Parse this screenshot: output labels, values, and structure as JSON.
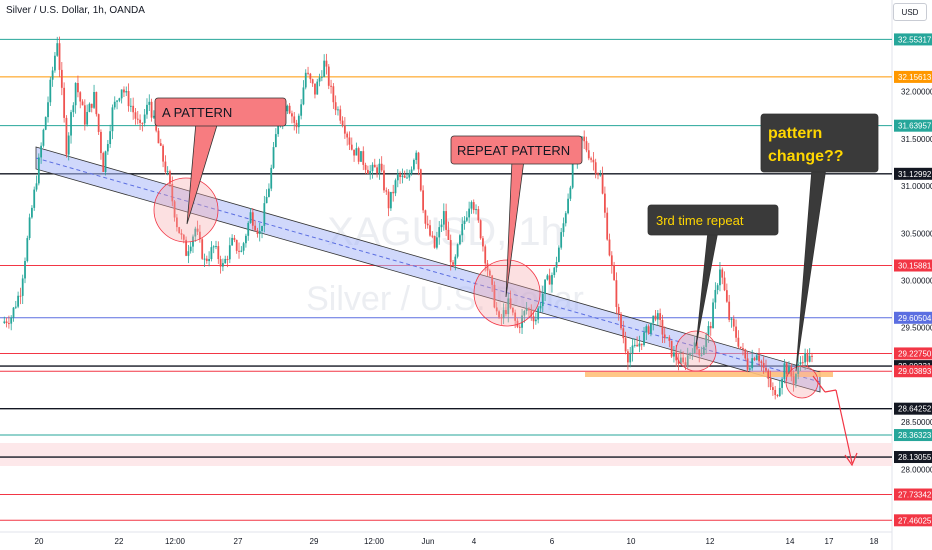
{
  "header": {
    "title": "Silver / U.S. Dollar, 1h, OANDA",
    "currency": "USD"
  },
  "watermark": {
    "symbol": "XAGUSD, 1h",
    "name": "Silver / U.S. Dollar"
  },
  "colors": {
    "up": "#26a69a",
    "down": "#ef5350",
    "teal_line": "#26a69a",
    "orange_line": "#ff9800",
    "red_line": "#f23645",
    "blue_line": "#5b6ee1",
    "channel_fill": "#a9b8f7",
    "annotation_red": "#f77c80",
    "annotation_dark": "#3a3a3a",
    "annotation_yellow_text": "#ffd600"
  },
  "annotations": {
    "a_pattern": "A PATTERN",
    "repeat_pattern": "REPEAT PATTERN",
    "third_repeat": "3rd time repeat",
    "pattern_change_1": "pattern",
    "pattern_change_2": "change??"
  },
  "chart_data": {
    "type": "candlestick",
    "symbol": "XAGUSD",
    "timeframe": "1h",
    "y_axis_ticks": [
      "32.00000",
      "31.50000",
      "31.00000",
      "30.50000",
      "30.00000",
      "29.50000",
      "28.50000",
      "28.00000"
    ],
    "x_axis_ticks": [
      "20",
      "22",
      "12:00",
      "27",
      "29",
      "12:00",
      "Jun",
      "4",
      "6",
      "10",
      "12",
      "14",
      "17",
      "18"
    ],
    "ylim": [
      27.4,
      32.6
    ],
    "horizontal_levels": [
      {
        "value": 32.55317,
        "label": "32.55317",
        "color": "teal"
      },
      {
        "value": 32.15613,
        "label": "32.15613",
        "color": "orange"
      },
      {
        "value": 31.63957,
        "label": "31.63957",
        "color": "teal"
      },
      {
        "value": 31.12992,
        "label": "31.12992",
        "color": "black"
      },
      {
        "value": 30.15881,
        "label": "30.15881",
        "color": "red"
      },
      {
        "value": 29.60504,
        "label": "29.60504",
        "color": "blue"
      },
      {
        "value": 29.2275,
        "label": "29.22750",
        "color": "red"
      },
      {
        "value": 29.09331,
        "label": "29.09331",
        "color": "black"
      },
      {
        "value": 29.03893,
        "label": "29.03893",
        "color": "red"
      },
      {
        "value": 28.64252,
        "label": "28.64252",
        "color": "black"
      },
      {
        "value": 28.36323,
        "label": "28.36323",
        "color": "teal"
      },
      {
        "value": 28.13055,
        "label": "28.13055",
        "color": "black"
      },
      {
        "value": 27.73342,
        "label": "27.73342",
        "color": "red"
      },
      {
        "value": 27.46025,
        "label": "27.46025",
        "color": "red"
      }
    ],
    "channel": {
      "upper_start": [
        0,
        31.32
      ],
      "upper_end": [
        1,
        29.04
      ],
      "lower_start": [
        0,
        31.15
      ],
      "lower_end": [
        1,
        28.85
      ]
    },
    "price_path": [
      29.55,
      29.62,
      29.9,
      30.6,
      31.25,
      31.9,
      32.55,
      31.4,
      32.1,
      31.7,
      31.95,
      31.2,
      31.8,
      32.05,
      31.85,
      31.6,
      31.9,
      31.45,
      31.1,
      30.6,
      30.3,
      30.55,
      30.2,
      30.35,
      30.15,
      30.4,
      30.3,
      30.7,
      30.5,
      31.0,
      31.7,
      31.9,
      31.6,
      32.2,
      32.0,
      32.3,
      31.9,
      31.7,
      31.4,
      31.3,
      31.15,
      31.2,
      30.8,
      31.1,
      31.05,
      31.4,
      30.6,
      30.35,
      30.7,
      30.1,
      30.55,
      30.9,
      30.5,
      30.0,
      29.55,
      29.75,
      29.5,
      29.7,
      29.6,
      29.95,
      30.1,
      30.6,
      31.2,
      31.5,
      31.3,
      31.1,
      30.3,
      29.6,
      29.2,
      29.3,
      29.45,
      29.65,
      29.4,
      29.2,
      29.1,
      29.3,
      29.25,
      29.55,
      30.15,
      29.6,
      29.35,
      29.1,
      29.25,
      29.0,
      28.75,
      29.1,
      28.95,
      29.2,
      29.15
    ],
    "projection": {
      "from": 29.0,
      "to": 28.1
    }
  }
}
